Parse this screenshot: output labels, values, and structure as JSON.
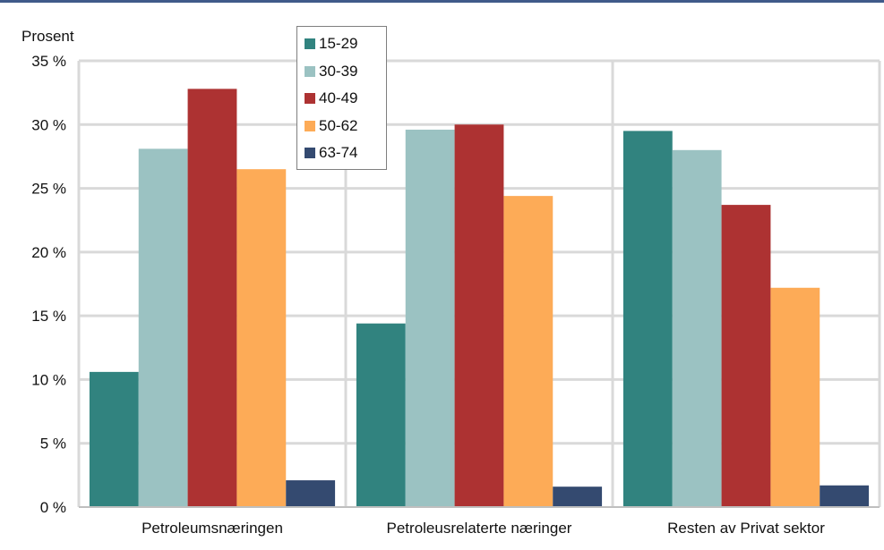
{
  "chart_data": {
    "type": "bar",
    "ylabel": "Prosent",
    "ylim": [
      0,
      35
    ],
    "yticks": [
      0,
      5,
      10,
      15,
      20,
      25,
      30,
      35
    ],
    "ytick_labels": [
      "0 %",
      "5 %",
      "10 %",
      "15 %",
      "20 %",
      "25 %",
      "30 %",
      "35 %"
    ],
    "grid": true,
    "legend_position": "top-center",
    "categories": [
      "Petroleumsnæringen",
      "Petroleusrelaterte næringer",
      "Resten av Privat sektor"
    ],
    "series": [
      {
        "name": "15-29",
        "color": "#31837f",
        "values": [
          10.6,
          14.4,
          29.5
        ]
      },
      {
        "name": "30-39",
        "color": "#9bc2c2",
        "values": [
          28.1,
          29.6,
          28.0
        ]
      },
      {
        "name": "40-49",
        "color": "#ad3232",
        "values": [
          32.8,
          30.0,
          23.7
        ]
      },
      {
        "name": "50-62",
        "color": "#fdab57",
        "values": [
          26.5,
          24.4,
          17.2
        ]
      },
      {
        "name": "63-74",
        "color": "#344a70",
        "values": [
          2.1,
          1.6,
          1.7
        ]
      }
    ]
  }
}
